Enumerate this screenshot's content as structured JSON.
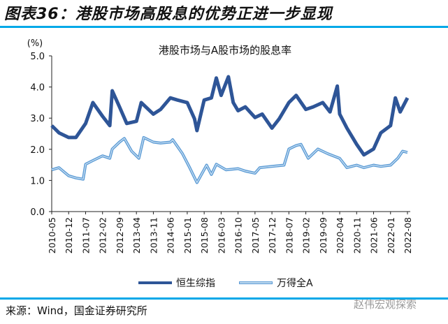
{
  "figure_title": "图表36：港股市场高股息的优势正进一步显现",
  "source": "来源：Wind，国金证券研究所",
  "watermark": "赵伟宏观探索",
  "colors": {
    "accent_rule": "#00A8E8",
    "series_hsci": "#2E5597",
    "series_winda": "#5B9BD5"
  },
  "chart_data": {
    "type": "line",
    "title": "港股市场与A股市场的股息率",
    "ylabel": "(%)",
    "ylim": [
      0,
      5
    ],
    "yticks": [
      "0.0",
      "1.0",
      "2.0",
      "3.0",
      "4.0",
      "5.0"
    ],
    "xlim": [
      "2010-05",
      "2022-09"
    ],
    "xticks": [
      "2010-05",
      "2010-12",
      "2011-07",
      "2012-02",
      "2012-09",
      "2013-04",
      "2013-11",
      "2014-06",
      "2015-01",
      "2015-08",
      "2016-03",
      "2016-10",
      "2017-05",
      "2017-12",
      "2018-07",
      "2019-02",
      "2019-09",
      "2020-04",
      "2020-11",
      "2021-06",
      "2022-01",
      "2022-08"
    ],
    "grid": false,
    "legend_position": "bottom",
    "series": [
      {
        "name": "恒生综指",
        "color": "#2E5597",
        "points": [
          [
            "2010-05",
            2.76
          ],
          [
            "2010-08",
            2.53
          ],
          [
            "2010-12",
            2.38
          ],
          [
            "2011-03",
            2.38
          ],
          [
            "2011-07",
            2.83
          ],
          [
            "2011-10",
            3.5
          ],
          [
            "2012-02",
            3.06
          ],
          [
            "2012-05",
            2.76
          ],
          [
            "2012-06",
            3.88
          ],
          [
            "2012-09",
            3.36
          ],
          [
            "2012-12",
            2.83
          ],
          [
            "2013-04",
            2.9
          ],
          [
            "2013-06",
            3.5
          ],
          [
            "2013-11",
            3.13
          ],
          [
            "2014-02",
            3.28
          ],
          [
            "2014-06",
            3.65
          ],
          [
            "2014-09",
            3.58
          ],
          [
            "2015-01",
            3.5
          ],
          [
            "2015-04",
            2.98
          ],
          [
            "2015-05",
            2.6
          ],
          [
            "2015-08",
            3.58
          ],
          [
            "2015-11",
            3.65
          ],
          [
            "2016-01",
            4.29
          ],
          [
            "2016-03",
            3.73
          ],
          [
            "2016-06",
            4.33
          ],
          [
            "2016-08",
            3.5
          ],
          [
            "2016-10",
            3.24
          ],
          [
            "2017-01",
            3.36
          ],
          [
            "2017-05",
            3.02
          ],
          [
            "2017-08",
            3.13
          ],
          [
            "2017-12",
            2.68
          ],
          [
            "2018-03",
            2.98
          ],
          [
            "2018-07",
            3.5
          ],
          [
            "2018-10",
            3.73
          ],
          [
            "2019-02",
            3.28
          ],
          [
            "2019-05",
            3.36
          ],
          [
            "2019-09",
            3.5
          ],
          [
            "2019-12",
            3.2
          ],
          [
            "2020-03",
            4.03
          ],
          [
            "2020-04",
            3.13
          ],
          [
            "2020-07",
            2.68
          ],
          [
            "2020-11",
            2.16
          ],
          [
            "2021-02",
            1.82
          ],
          [
            "2021-06",
            2.01
          ],
          [
            "2021-09",
            2.53
          ],
          [
            "2022-01",
            2.76
          ],
          [
            "2022-03",
            3.65
          ],
          [
            "2022-05",
            3.2
          ],
          [
            "2022-08",
            3.65
          ]
        ]
      },
      {
        "name": "万得全A",
        "color": "#5B9BD5",
        "points": [
          [
            "2010-05",
            1.34
          ],
          [
            "2010-08",
            1.41
          ],
          [
            "2010-12",
            1.15
          ],
          [
            "2011-03",
            1.08
          ],
          [
            "2011-06",
            1.04
          ],
          [
            "2011-07",
            1.52
          ],
          [
            "2011-10",
            1.64
          ],
          [
            "2012-02",
            1.79
          ],
          [
            "2012-05",
            1.71
          ],
          [
            "2012-06",
            2.01
          ],
          [
            "2012-09",
            2.23
          ],
          [
            "2012-11",
            2.35
          ],
          [
            "2013-02",
            1.94
          ],
          [
            "2013-05",
            1.71
          ],
          [
            "2013-07",
            2.38
          ],
          [
            "2013-11",
            2.23
          ],
          [
            "2014-02",
            2.2
          ],
          [
            "2014-06",
            2.23
          ],
          [
            "2014-07",
            2.31
          ],
          [
            "2014-11",
            1.86
          ],
          [
            "2015-02",
            1.41
          ],
          [
            "2015-05",
            0.93
          ],
          [
            "2015-09",
            1.49
          ],
          [
            "2015-11",
            1.19
          ],
          [
            "2016-01",
            1.52
          ],
          [
            "2016-05",
            1.34
          ],
          [
            "2016-10",
            1.38
          ],
          [
            "2017-01",
            1.3
          ],
          [
            "2017-05",
            1.23
          ],
          [
            "2017-07",
            1.41
          ],
          [
            "2017-12",
            1.45
          ],
          [
            "2018-05",
            1.49
          ],
          [
            "2018-07",
            2.01
          ],
          [
            "2018-10",
            2.12
          ],
          [
            "2018-12",
            2.16
          ],
          [
            "2019-03",
            1.71
          ],
          [
            "2019-07",
            2.01
          ],
          [
            "2019-11",
            1.86
          ],
          [
            "2020-04",
            1.71
          ],
          [
            "2020-07",
            1.41
          ],
          [
            "2020-11",
            1.49
          ],
          [
            "2021-02",
            1.41
          ],
          [
            "2021-06",
            1.49
          ],
          [
            "2021-09",
            1.45
          ],
          [
            "2022-01",
            1.49
          ],
          [
            "2022-04",
            1.71
          ],
          [
            "2022-06",
            1.94
          ],
          [
            "2022-08",
            1.9
          ]
        ]
      }
    ]
  }
}
